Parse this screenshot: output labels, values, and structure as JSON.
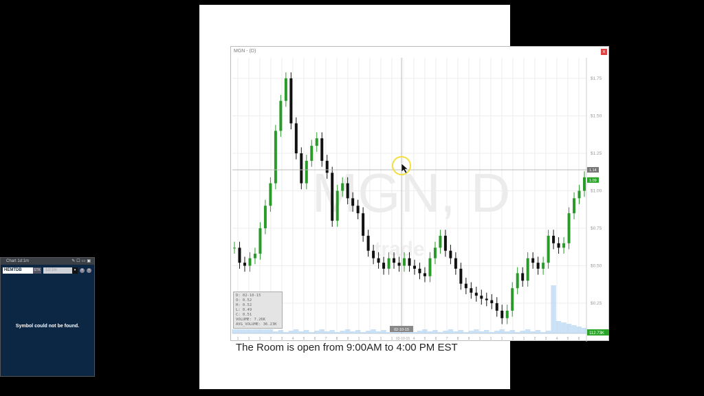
{
  "document": {
    "text": "The Room is open from 9:00AM to 4:00 PM EST"
  },
  "chart_window": {
    "title": "MGN - (D)",
    "close_label": "x",
    "watermark": "MGN, D",
    "watermark_sub": "trade",
    "crosshair_price": "1.14",
    "last_price": "1.09",
    "last_volume": "112.73K",
    "crosshair_date": "02-10-15",
    "ohlc": {
      "d": "D: 02-10-15",
      "o": "O: 0.52",
      "h": "H: 0.52",
      "l": "L: 0.49",
      "c": "C: 0.51",
      "volume": "VOLUME: 7.26K",
      "avg_volume": "AVG_VOLUME: 36.23K"
    },
    "colors": {
      "up": "#2a9a2a",
      "down": "#111111",
      "volume": "#a9cdf0",
      "last_price_bg": "#2aa52a",
      "crosshair_bg": "#777777"
    }
  },
  "chart_data": {
    "type": "line",
    "title": "MGN - (D)",
    "ylim": [
      0.1,
      1.85
    ],
    "yticks": [
      "$0.25",
      "$0.50",
      "$0.75",
      "$1.00",
      "$1.25",
      "$1.50",
      "$1.75"
    ],
    "ytick_values": [
      0.25,
      0.5,
      0.75,
      1.0,
      1.25,
      1.5,
      1.75
    ],
    "xticks": [
      "1",
      "1",
      "1",
      "2",
      "3",
      "4",
      "5",
      "6",
      "7",
      "8",
      "9",
      "1",
      "1",
      "1",
      "1",
      "02-10-15",
      "4",
      "5",
      "6",
      "7",
      "8",
      "9",
      "1",
      "1",
      "1",
      "1",
      "1",
      "2",
      "3",
      "4",
      "5",
      "6"
    ],
    "close": [
      0.62,
      0.52,
      0.5,
      0.55,
      0.58,
      0.75,
      0.9,
      1.05,
      1.4,
      1.6,
      1.75,
      1.45,
      1.25,
      1.05,
      1.2,
      1.3,
      1.35,
      1.2,
      1.12,
      0.8,
      1.0,
      1.05,
      0.95,
      0.9,
      0.85,
      0.7,
      0.6,
      0.55,
      0.52,
      0.48,
      0.55,
      0.52,
      0.5,
      0.55,
      0.5,
      0.48,
      0.45,
      0.43,
      0.55,
      0.62,
      0.7,
      0.6,
      0.55,
      0.48,
      0.38,
      0.35,
      0.32,
      0.3,
      0.28,
      0.27,
      0.25,
      0.2,
      0.15,
      0.2,
      0.35,
      0.45,
      0.4,
      0.55,
      0.52,
      0.48,
      0.52,
      0.7,
      0.65,
      0.62,
      0.65,
      0.85,
      0.95,
      1.0,
      1.09
    ]
  },
  "left_panel": {
    "title": "Chart 1d:1m",
    "icons": [
      "pin-icon",
      "edit-icon",
      "window-icon",
      "close-icon"
    ],
    "symbol_value": "HEMTDB",
    "type_label": "STK",
    "timeframe": "1d:1m",
    "message": "Symbol could not be found."
  }
}
